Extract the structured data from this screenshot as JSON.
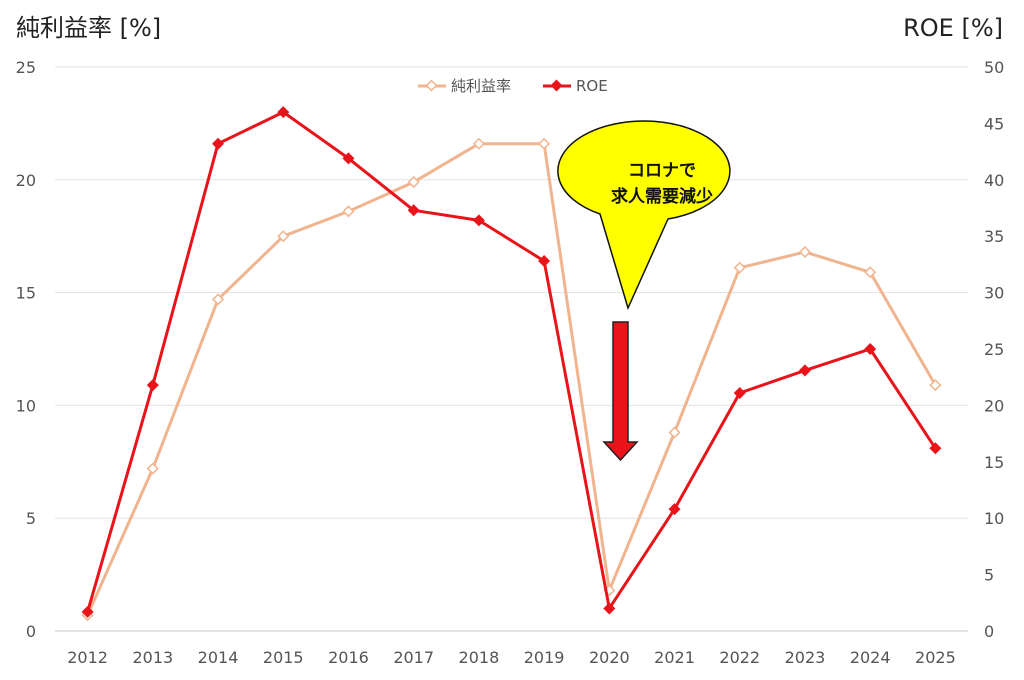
{
  "chart_data": {
    "type": "line",
    "x": [
      "2012",
      "2013",
      "2014",
      "2015",
      "2016",
      "2017",
      "2018",
      "2019",
      "2020",
      "2021",
      "2022",
      "2023",
      "2024",
      "2025"
    ],
    "left_axis": {
      "label": "純利益率 [%]",
      "ylim": [
        0,
        25
      ],
      "ticks": [
        "0",
        "5",
        "10",
        "15",
        "20",
        "25"
      ]
    },
    "right_axis": {
      "label": "ROE [%]",
      "ylim": [
        0,
        50
      ],
      "ticks": [
        "0",
        "5",
        "10",
        "15",
        "20",
        "25",
        "30",
        "35",
        "40",
        "45",
        "50"
      ]
    },
    "series": [
      {
        "name": "純利益率",
        "axis": "left",
        "color": "#f0b48e",
        "values": [
          0.7,
          7.2,
          14.7,
          17.5,
          18.6,
          19.9,
          21.6,
          21.6,
          1.8,
          8.8,
          16.1,
          16.8,
          15.9,
          10.9
        ]
      },
      {
        "name": "ROE",
        "axis": "right",
        "color": "#e8141a",
        "values": [
          1.7,
          21.8,
          43.2,
          46.0,
          41.9,
          37.3,
          36.4,
          32.8,
          2.0,
          10.8,
          21.1,
          23.1,
          25.0,
          16.2
        ]
      }
    ],
    "legend": {
      "placement": "top-center"
    },
    "grid": true,
    "annotation": {
      "lines": [
        "コロナで",
        "求人需要減少"
      ],
      "bubble_color": "#ffff00",
      "arrow_color": "#e8141a"
    }
  }
}
